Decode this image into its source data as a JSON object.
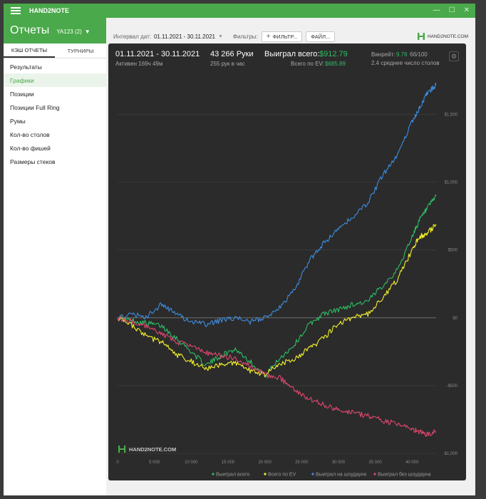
{
  "app": {
    "title": "HAND2NOTE",
    "win_min": "—",
    "win_max": "☐",
    "win_close": "✕"
  },
  "sidebar": {
    "title": "Отчеты",
    "user": "YA123 (2)",
    "tabs": [
      {
        "label": "КЭШ ОТЧЕТЫ"
      },
      {
        "label": "ТУРНИРЫ"
      }
    ],
    "items": [
      {
        "label": "Результаты"
      },
      {
        "label": "Графики"
      },
      {
        "label": "Позиции"
      },
      {
        "label": "Позиции Full Ring"
      },
      {
        "label": "Румы"
      },
      {
        "label": "Кол-во столов"
      },
      {
        "label": "Кол-во фишей"
      },
      {
        "label": "Размеры стеков"
      }
    ]
  },
  "filterbar": {
    "date_label": "Интервал дат:",
    "date_value": "01.11.2021 - 30.11.2021",
    "filters_label": "Фильтры:",
    "filter_button": "ФИЛЬТР...",
    "file_button": "ФАЙЛ...",
    "brand": "HAND2NOTE.COM"
  },
  "stats": {
    "date_range": "01.11.2021 - 30.11.2021",
    "active": "Активен 169ч 49м",
    "hands": "43 266 Руки",
    "hands_per_hour": "255 рук в час",
    "won_label": "Выиграл всего:",
    "won_value": "$912.79",
    "ev_label": "Всего по EV:",
    "ev_value": "$685.89",
    "winrate_label": "Винрейт:",
    "winrate_value": "9.76",
    "winrate_suffix": "бб/100",
    "tables_avg": "2.4 среднее число столов"
  },
  "watermark": "HAND2NOTE.COM",
  "colors": {
    "green": "#2dbd64",
    "yellow": "#f2f22a",
    "blue": "#3d8de0",
    "pink": "#e2466e",
    "accent": "#4aa94a"
  },
  "chart_data": {
    "type": "line",
    "x_ticks": [
      0,
      5000,
      10000,
      15000,
      20000,
      25000,
      30000,
      35000,
      40000
    ],
    "x_tick_labels": [
      "0",
      "5 000",
      "10 000",
      "15 000",
      "20 000",
      "25 000",
      "30 000",
      "35 000",
      "40 000"
    ],
    "y_ticks": [
      -1000,
      -500,
      0,
      500,
      1000,
      1500
    ],
    "y_tick_labels": [
      "-$1,000",
      "-$500",
      "$0",
      "$500",
      "$1,000",
      "$1,500"
    ],
    "xlim": [
      0,
      43266
    ],
    "ylim": [
      -1000,
      1750
    ],
    "grid": "horizontal",
    "legend_position": "bottom-right",
    "series": [
      {
        "name": "Выиграл всего",
        "color": "#2dbd64",
        "x": [
          0,
          2000,
          4000,
          6000,
          8000,
          10000,
          12000,
          14000,
          16000,
          18000,
          20000,
          22000,
          24000,
          26000,
          28000,
          30000,
          32000,
          34000,
          36000,
          38000,
          40000,
          41000,
          42000,
          43266
        ],
        "y": [
          0,
          -20,
          -40,
          -60,
          -150,
          -250,
          -350,
          -280,
          -230,
          -320,
          -430,
          -300,
          -200,
          -50,
          30,
          60,
          100,
          120,
          240,
          350,
          600,
          720,
          800,
          900
        ]
      },
      {
        "name": "Всего по EV",
        "color": "#f2f22a",
        "x": [
          0,
          2000,
          4000,
          6000,
          8000,
          10000,
          12000,
          14000,
          16000,
          18000,
          20000,
          22000,
          24000,
          26000,
          28000,
          30000,
          32000,
          34000,
          36000,
          38000,
          40000,
          41000,
          42000,
          43266
        ],
        "y": [
          0,
          -60,
          -140,
          -180,
          -270,
          -320,
          -380,
          -350,
          -330,
          -390,
          -420,
          -340,
          -300,
          -230,
          -150,
          -40,
          0,
          30,
          150,
          280,
          500,
          600,
          620,
          690
        ]
      },
      {
        "name": "Выиграл на шоудауне",
        "color": "#3d8de0",
        "x": [
          0,
          2000,
          4000,
          6000,
          8000,
          10000,
          12000,
          14000,
          16000,
          18000,
          20000,
          22000,
          24000,
          26000,
          28000,
          30000,
          32000,
          34000,
          36000,
          38000,
          40000,
          41000,
          42000,
          43266
        ],
        "y": [
          0,
          20,
          10,
          100,
          30,
          -30,
          -50,
          -20,
          0,
          -30,
          0,
          80,
          200,
          420,
          550,
          650,
          750,
          850,
          1050,
          1200,
          1450,
          1550,
          1650,
          1720
        ]
      },
      {
        "name": "Выиграл без шоудауна",
        "color": "#e2466e",
        "x": [
          0,
          2000,
          4000,
          6000,
          8000,
          10000,
          12000,
          14000,
          16000,
          18000,
          20000,
          22000,
          24000,
          26000,
          28000,
          30000,
          32000,
          34000,
          36000,
          38000,
          40000,
          41000,
          42000,
          43266
        ],
        "y": [
          0,
          -30,
          -60,
          -120,
          -180,
          -200,
          -260,
          -280,
          -300,
          -350,
          -420,
          -440,
          -530,
          -600,
          -640,
          -680,
          -700,
          -720,
          -760,
          -780,
          -820,
          -840,
          -860,
          -840
        ]
      }
    ]
  }
}
